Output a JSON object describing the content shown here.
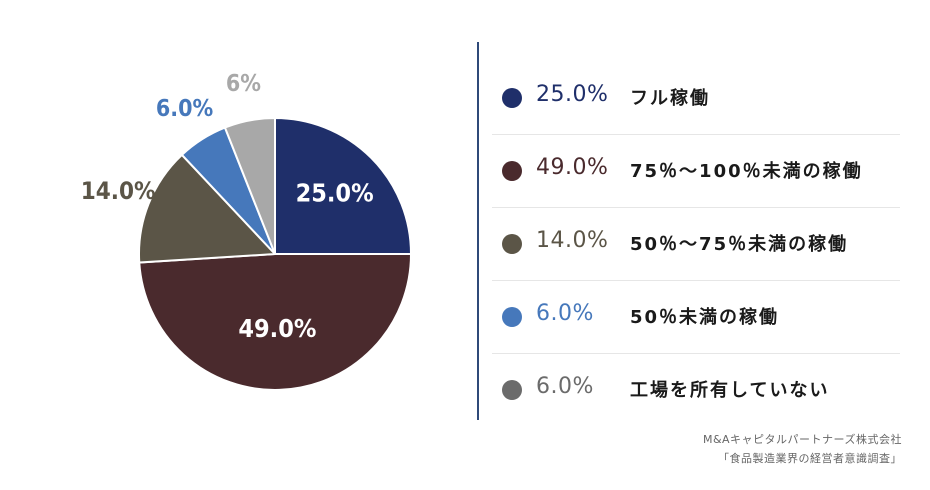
{
  "chart_data": {
    "type": "pie",
    "start_angle": "12 o'clock",
    "direction": "clockwise",
    "slices": [
      {
        "name": "フル稼働",
        "value": 25.0,
        "display_label": "25.0%",
        "legend_value": "25.0%",
        "color": "#1f2f6a",
        "label_color": "#ffffff",
        "label_inside": true
      },
      {
        "name": "75％～100％未満の稼働",
        "value": 49.0,
        "display_label": "49.0%",
        "legend_value": "49.0%",
        "color": "#4a2a2d",
        "label_color": "#ffffff",
        "label_inside": true
      },
      {
        "name": "50％～75％未満の稼働",
        "value": 14.0,
        "display_label": "14.0%",
        "legend_value": "14.0%",
        "color": "#5b5547",
        "label_color": "#5b5547",
        "label_inside": false
      },
      {
        "name": "50％未満の稼働",
        "value": 6.0,
        "display_label": "6.0%",
        "legend_value": "6.0%",
        "color": "#4678bb",
        "label_color": "#4678bb",
        "label_inside": false
      },
      {
        "name": "工場を所有していない",
        "value": 6.0,
        "display_label": "6%",
        "legend_value": "6.0%",
        "color": "#a8a8a8",
        "label_color": "#a8a8a8",
        "label_inside": false
      }
    ],
    "legend_position": "right"
  },
  "legend_colors": {
    "dot": [
      "#1f2f6a",
      "#4a2a2d",
      "#5b5547",
      "#4678bb",
      "#6b6b6b"
    ],
    "text": [
      "#1f2f6a",
      "#4a2a2d",
      "#5b5547",
      "#4678bb",
      "#6b6b6b"
    ]
  },
  "source": {
    "line1": "M&Aキャピタルパートナーズ株式会社",
    "line2": "「食品製造業界の経営者意識調査」"
  }
}
